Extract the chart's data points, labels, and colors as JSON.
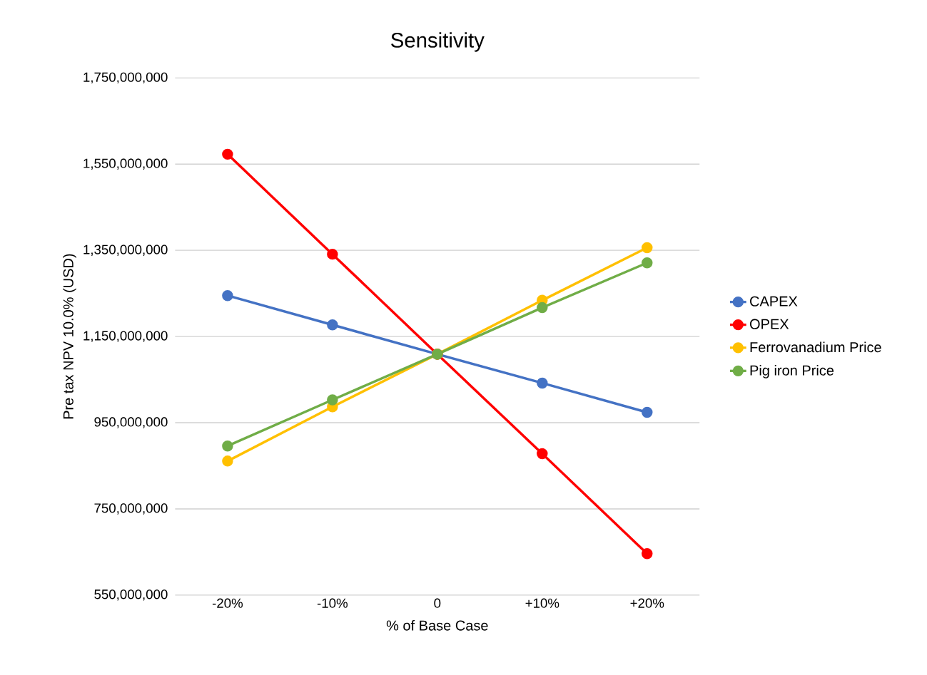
{
  "chart_data": {
    "type": "line",
    "title": "Sensitivity",
    "xlabel": "% of Base Case",
    "ylabel": "Pre tax NPV 10.0% (USD)",
    "categories": [
      "-20%",
      "-10%",
      "0",
      "+10%",
      "+20%"
    ],
    "series": [
      {
        "name": "CAPEX",
        "color": "#4472c4",
        "values": [
          1245000000,
          1177000000,
          1109000000,
          1042000000,
          974000000
        ]
      },
      {
        "name": "OPEX",
        "color": "#ff0000",
        "values": [
          1573000000,
          1341000000,
          1109000000,
          878000000,
          646000000
        ]
      },
      {
        "name": "Ferrovanadium Price",
        "color": "#ffc000",
        "values": [
          861000000,
          987000000,
          1109000000,
          1234000000,
          1356000000
        ]
      },
      {
        "name": "Pig iron Price",
        "color": "#70ad47",
        "values": [
          896000000,
          1003000000,
          1109000000,
          1217000000,
          1321000000
        ]
      }
    ],
    "ylim": [
      550000000,
      1750000000
    ],
    "yticks": [
      {
        "value": 550000000,
        "label": "550,000,000"
      },
      {
        "value": 750000000,
        "label": "750,000,000"
      },
      {
        "value": 950000000,
        "label": "950,000,000"
      },
      {
        "value": 1150000000,
        "label": "1,150,000,000"
      },
      {
        "value": 1350000000,
        "label": "1,350,000,000"
      },
      {
        "value": 1550000000,
        "label": "1,550,000,000"
      },
      {
        "value": 1750000000,
        "label": "1,750,000,000"
      }
    ],
    "grid": "y",
    "legend": "right",
    "marker": "circle",
    "line_style": "solid"
  }
}
